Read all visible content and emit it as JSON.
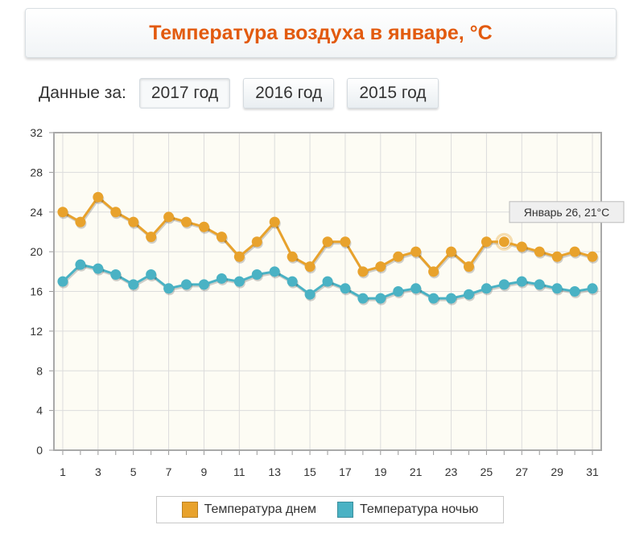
{
  "page": {
    "title": "Температура воздуха в январе, °C"
  },
  "year_selector": {
    "label": "Данные за:",
    "options": [
      "2017 год",
      "2016 год",
      "2015 год"
    ],
    "selected": "2017 год"
  },
  "tooltip": {
    "text": "Январь 26, 21°C"
  },
  "chart_data": {
    "type": "line",
    "title": "Температура воздуха в январе, °C",
    "x": [
      1,
      2,
      3,
      4,
      5,
      6,
      7,
      8,
      9,
      10,
      11,
      12,
      13,
      14,
      15,
      16,
      17,
      18,
      19,
      20,
      21,
      22,
      23,
      24,
      25,
      26,
      27,
      28,
      29,
      30,
      31
    ],
    "x_tick_labels": [
      "1",
      "3",
      "5",
      "7",
      "9",
      "11",
      "13",
      "15",
      "17",
      "19",
      "21",
      "23",
      "25",
      "27",
      "29",
      "31"
    ],
    "y_ticks": [
      0,
      4,
      8,
      12,
      16,
      20,
      24,
      28,
      32
    ],
    "ylim": [
      0,
      32
    ],
    "grid": true,
    "legend_position": "bottom",
    "highlight": {
      "series": 0,
      "x": 26,
      "y": 21
    },
    "series": [
      {
        "name": "Температура днем",
        "color": "#e8a22c",
        "values": [
          24,
          23,
          25.5,
          24,
          23,
          21.5,
          23.5,
          23,
          22.5,
          21.5,
          19.5,
          21,
          23,
          19.5,
          18.5,
          21,
          21,
          18,
          18.5,
          19.5,
          20,
          18,
          20,
          18.5,
          21,
          21,
          20.5,
          20,
          19.5,
          20,
          19.5
        ]
      },
      {
        "name": "Температура ночью",
        "color": "#4ab2c4",
        "values": [
          17,
          18.7,
          18.3,
          17.7,
          16.7,
          17.7,
          16.3,
          16.7,
          16.7,
          17.3,
          17,
          17.7,
          18,
          17,
          15.7,
          17,
          16.3,
          15.3,
          15.3,
          16,
          16.3,
          15.3,
          15.3,
          15.7,
          16.3,
          16.7,
          17,
          16.7,
          16.3,
          16,
          16.3
        ]
      }
    ]
  }
}
